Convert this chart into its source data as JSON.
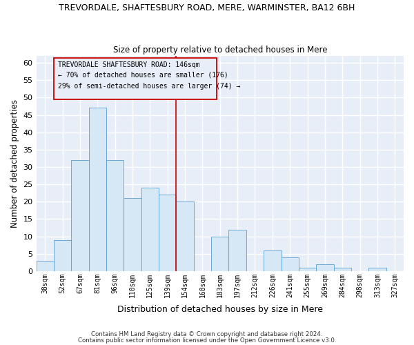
{
  "title": "TREVORDALE, SHAFTESBURY ROAD, MERE, WARMINSTER, BA12 6BH",
  "subtitle": "Size of property relative to detached houses in Mere",
  "xlabel": "Distribution of detached houses by size in Mere",
  "ylabel": "Number of detached properties",
  "bin_labels": [
    "38sqm",
    "52sqm",
    "67sqm",
    "81sqm",
    "96sqm",
    "110sqm",
    "125sqm",
    "139sqm",
    "154sqm",
    "168sqm",
    "183sqm",
    "197sqm",
    "212sqm",
    "226sqm",
    "241sqm",
    "255sqm",
    "269sqm",
    "284sqm",
    "298sqm",
    "313sqm",
    "327sqm"
  ],
  "bar_values": [
    3,
    9,
    32,
    47,
    32,
    21,
    24,
    22,
    20,
    0,
    10,
    12,
    0,
    6,
    4,
    1,
    2,
    1,
    0,
    1,
    0
  ],
  "bar_color": "#d6e8f5",
  "bar_edge_color": "#5a9fd4",
  "bg_color": "#e8eef8",
  "grid_color": "#ffffff",
  "vline_color": "#cc0000",
  "annotation_line1": "TREVORDALE SHAFTESBURY ROAD: 146sqm",
  "annotation_line2": "← 70% of detached houses are smaller (176)",
  "annotation_line3": "29% of semi-detached houses are larger (74) →",
  "ylim": [
    0,
    62
  ],
  "yticks": [
    0,
    5,
    10,
    15,
    20,
    25,
    30,
    35,
    40,
    45,
    50,
    55,
    60
  ],
  "vline_x_index": 7.5,
  "footer1": "Contains HM Land Registry data © Crown copyright and database right 2024.",
  "footer2": "Contains public sector information licensed under the Open Government Licence v3.0."
}
